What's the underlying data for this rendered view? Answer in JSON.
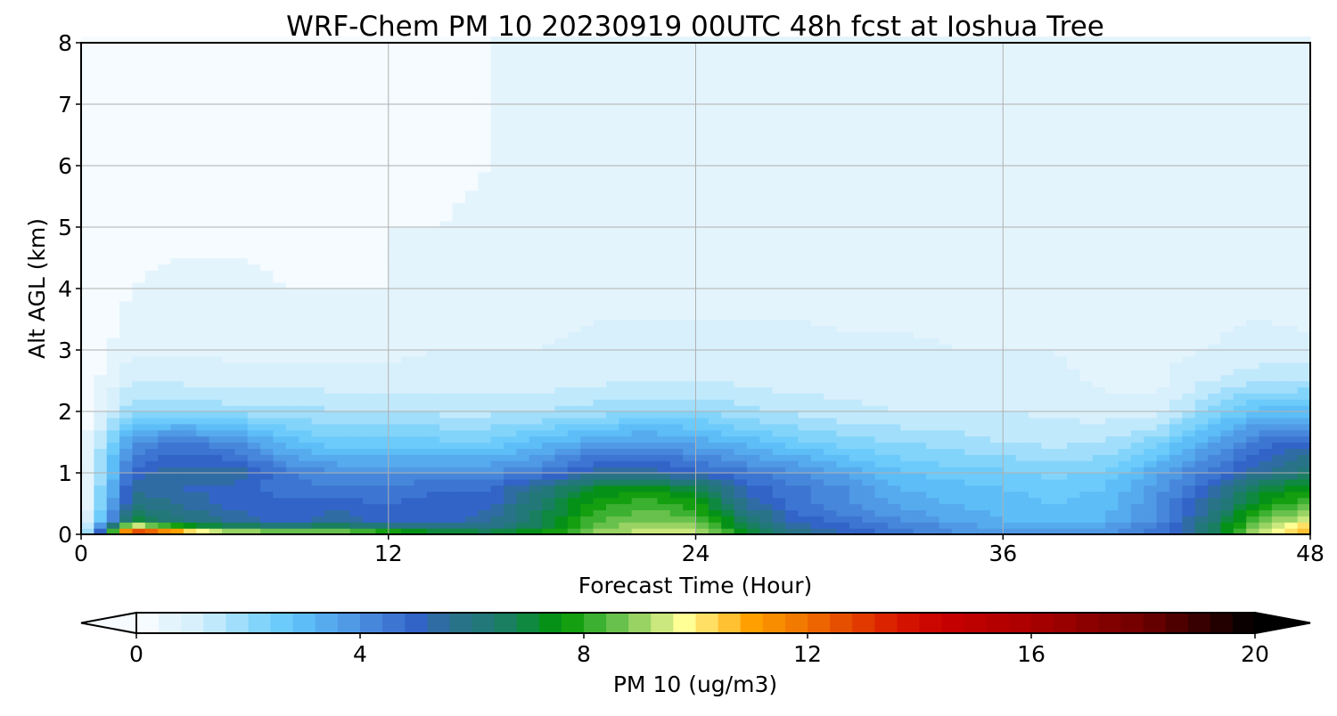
{
  "chart_data": {
    "type": "heatmap",
    "title": "WRF-Chem PM 10  20230919 00UTC 48h fcst at Joshua Tree",
    "xlabel": "Forecast Time (Hour)",
    "ylabel": "Alt AGL (km)",
    "xlim": [
      0,
      48
    ],
    "ylim": [
      0,
      8
    ],
    "xticks": [
      "0",
      "12",
      "24",
      "36",
      "48"
    ],
    "yticks": [
      "0",
      "1",
      "2",
      "3",
      "4",
      "5",
      "6",
      "7",
      "8"
    ],
    "grid": true,
    "x": [
      0,
      2,
      4,
      6,
      8,
      10,
      12,
      14,
      16,
      18,
      20,
      22,
      24,
      26,
      28,
      30,
      32,
      34,
      36,
      38,
      40,
      42,
      44,
      46,
      48
    ],
    "y": [
      0,
      0.1,
      0.25,
      0.5,
      0.75,
      1,
      1.5,
      2,
      2.5,
      3,
      4,
      5,
      6,
      8
    ],
    "z": [
      [
        0,
        15,
        13,
        11,
        10,
        10,
        9,
        8,
        7.5,
        8,
        9,
        9.6,
        9.5,
        7.5,
        6,
        5,
        4.5,
        4,
        3.8,
        4,
        4,
        4.5,
        6,
        9.5,
        11
      ],
      [
        0,
        11,
        8,
        7,
        7,
        7,
        6.5,
        6,
        6,
        7,
        8.5,
        9.2,
        9,
        7,
        5.5,
        5,
        4.5,
        4,
        3.5,
        3.5,
        3.8,
        4.5,
        6.5,
        9,
        10.5
      ],
      [
        0,
        7,
        6,
        5.5,
        5,
        5.5,
        5,
        5,
        5.5,
        6.8,
        8.2,
        8.8,
        8.5,
        6.5,
        5,
        4.5,
        4,
        3.5,
        3.2,
        3,
        3.2,
        4,
        6,
        8.5,
        9.5
      ],
      [
        0,
        6,
        5.5,
        5,
        5,
        5,
        4.8,
        5,
        5,
        6.5,
        7.8,
        8.2,
        7.8,
        5.5,
        4.5,
        4,
        3.5,
        3.2,
        3,
        2.8,
        3,
        4,
        5.5,
        7.5,
        8.5
      ],
      [
        0,
        5.5,
        5.2,
        5,
        4.5,
        4.5,
        4.5,
        4.8,
        4.8,
        6,
        7.2,
        7.5,
        7,
        5,
        4.5,
        4,
        3.2,
        3,
        2.8,
        2.6,
        2.8,
        3.8,
        5,
        7,
        7.5
      ],
      [
        0,
        5,
        5.5,
        5.5,
        4.5,
        4,
        4,
        4,
        4,
        4.5,
        5.5,
        5.5,
        5,
        4.5,
        4,
        3.5,
        2.8,
        2.6,
        2.5,
        2.3,
        2.5,
        3.5,
        4.5,
        5.5,
        6.5
      ],
      [
        0,
        4,
        4.5,
        4,
        3,
        2.5,
        2.5,
        2.5,
        2.5,
        3,
        3.5,
        3.8,
        3.5,
        3,
        2.5,
        2.2,
        2,
        1.8,
        1.6,
        1.5,
        1.6,
        2.2,
        3.5,
        4.5,
        5
      ],
      [
        0,
        2,
        2,
        1.8,
        1.8,
        1.6,
        1.6,
        1.5,
        1.5,
        1.6,
        1.8,
        2,
        2,
        1.7,
        1.5,
        1.3,
        1.2,
        1.2,
        1.2,
        1.1,
        1,
        1,
        2,
        3,
        3
      ],
      [
        0,
        1.2,
        1.1,
        1,
        1,
        1,
        1,
        1,
        1,
        1,
        1.1,
        1.2,
        1.2,
        1.1,
        1,
        1,
        1,
        1,
        0.9,
        0.9,
        0.7,
        0.7,
        1.2,
        1.5,
        1.6
      ],
      [
        0,
        0.7,
        0.7,
        0.7,
        0.7,
        0.7,
        0.7,
        0.8,
        0.8,
        0.8,
        0.9,
        0.9,
        0.9,
        0.9,
        0.9,
        0.9,
        0.9,
        0.8,
        0.8,
        0.8,
        0.7,
        0.7,
        0.8,
        0.9,
        0.9
      ],
      [
        0,
        0.4,
        0.5,
        0.5,
        0.4,
        0.4,
        0.4,
        0.5,
        0.5,
        0.6,
        0.7,
        0.7,
        0.7,
        0.7,
        0.7,
        0.6,
        0.6,
        0.6,
        0.6,
        0.7,
        0.7,
        0.7,
        0.7,
        0.7,
        0.6
      ],
      [
        0,
        0.3,
        0.3,
        0.3,
        0.3,
        0.3,
        0.4,
        0.4,
        0.5,
        0.5,
        0.5,
        0.5,
        0.5,
        0.5,
        0.5,
        0.5,
        0.5,
        0.5,
        0.5,
        0.5,
        0.6,
        0.7,
        0.7,
        0.7,
        0.6
      ],
      [
        0,
        0.2,
        0.2,
        0.2,
        0.2,
        0.2,
        0.3,
        0.3,
        0.4,
        0.4,
        0.4,
        0.4,
        0.4,
        0.4,
        0.4,
        0.4,
        0.4,
        0.4,
        0.4,
        0.4,
        0.5,
        0.6,
        0.6,
        0.6,
        0.6
      ],
      [
        0,
        0.2,
        0.2,
        0.2,
        0.2,
        0.3,
        0.3,
        0.3,
        0.4,
        0.4,
        0.4,
        0.4,
        0.4,
        0.4,
        0.4,
        0.4,
        0.4,
        0.5,
        0.5,
        0.5,
        0.5,
        0.5,
        0.5,
        0.5,
        0.6
      ]
    ],
    "colorbar": {
      "label": "PM 10  (ug/m3)",
      "range": [
        0,
        20
      ],
      "step": 0.4,
      "extend": "both",
      "ticks": [
        "0",
        "4",
        "8",
        "12",
        "16",
        "20"
      ],
      "color_stops": [
        [
          0,
          "#ffffff"
        ],
        [
          0.4,
          "#eaf6fd"
        ],
        [
          1.2,
          "#d2eefc"
        ],
        [
          2,
          "#8fd8fb"
        ],
        [
          2.8,
          "#60c6fb"
        ],
        [
          4,
          "#4c90e0"
        ],
        [
          5,
          "#3264c8"
        ],
        [
          5.6,
          "#2d7090"
        ],
        [
          6.4,
          "#1e7a70"
        ],
        [
          7.2,
          "#0a8c30"
        ],
        [
          7.6,
          "#009600"
        ],
        [
          8.4,
          "#50b840"
        ],
        [
          9.2,
          "#b0dc70"
        ],
        [
          9.8,
          "#ffff96"
        ],
        [
          11,
          "#ffa000"
        ],
        [
          12,
          "#f07000"
        ],
        [
          13.6,
          "#d81800"
        ],
        [
          14.4,
          "#c80000"
        ],
        [
          16,
          "#aa0000"
        ],
        [
          18,
          "#700000"
        ],
        [
          20,
          "#000000"
        ]
      ]
    }
  }
}
